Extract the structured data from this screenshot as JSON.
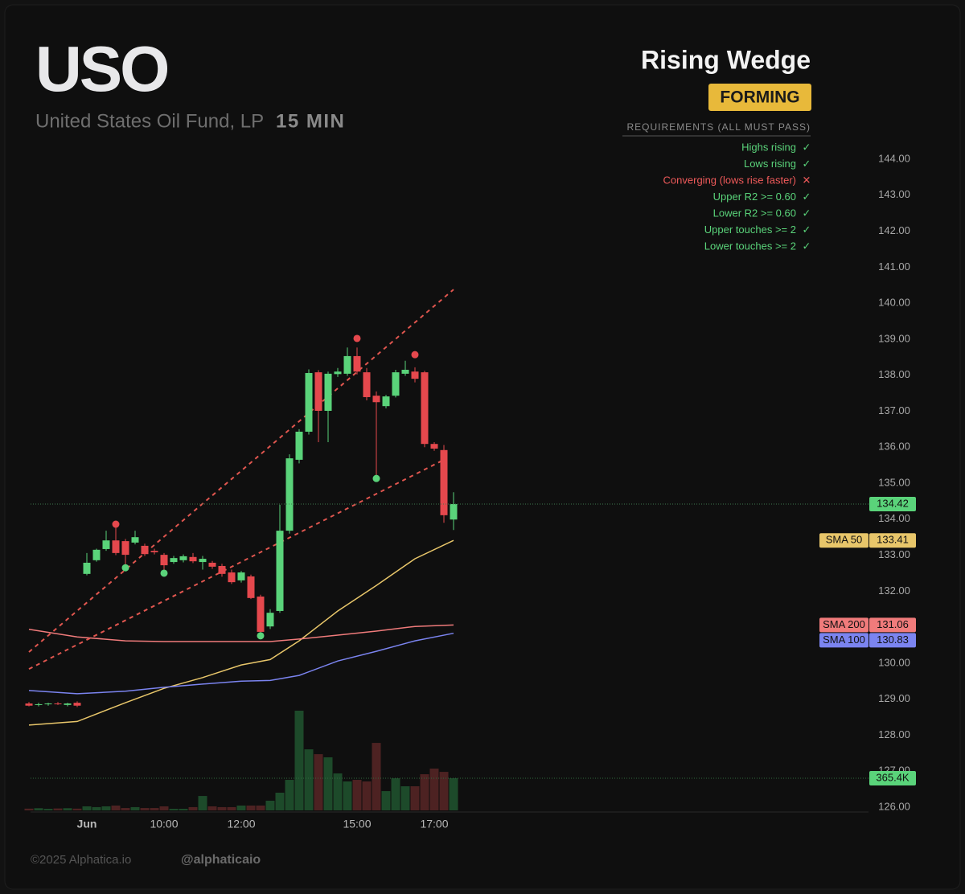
{
  "header": {
    "symbol": "USO",
    "name": "United States Oil Fund, LP",
    "interval": "15 MIN"
  },
  "pattern": {
    "title": "Rising Wedge",
    "status": "FORMING",
    "requirements_title": "REQUIREMENTS (ALL MUST PASS)",
    "requirements": [
      {
        "text": "Highs rising",
        "mark": "✓",
        "color": "#5ad37a"
      },
      {
        "text": "Lows rising",
        "mark": "✓",
        "color": "#5ad37a"
      },
      {
        "text": "Converging (lows rise faster)",
        "mark": "✕",
        "color": "#ef5a5a"
      },
      {
        "text": "Upper R2 >= 0.60",
        "mark": "✓",
        "color": "#5ad37a"
      },
      {
        "text": "Lower R2 >= 0.60",
        "mark": "✓",
        "color": "#5ad37a"
      },
      {
        "text": "Upper touches >= 2",
        "mark": "✓",
        "color": "#5ad37a"
      },
      {
        "text": "Lower touches >= 2",
        "mark": "✓",
        "color": "#5ad37a"
      }
    ]
  },
  "chart_data": {
    "type": "candlestick",
    "categories": [
      null,
      null,
      null,
      null,
      null,
      null,
      "Jun",
      null,
      null,
      null,
      null,
      null,
      null,
      null,
      "10:00",
      null,
      null,
      null,
      null,
      null,
      null,
      null,
      "12:00",
      null,
      null,
      null,
      null,
      null,
      null,
      null,
      null,
      null,
      null,
      null,
      "15:00",
      null,
      null,
      null,
      null,
      null,
      null,
      null,
      "17:00",
      null,
      null
    ],
    "open": [
      128.88,
      128.84,
      128.86,
      128.88,
      128.84,
      128.9,
      132.48,
      132.86,
      133.17,
      133.41,
      133.39,
      133.35,
      133.26,
      133.12,
      133.01,
      132.81,
      132.86,
      132.95,
      132.81,
      132.79,
      132.7,
      132.52,
      132.3,
      132.41,
      131.85,
      131.02,
      131.45,
      133.68,
      135.65,
      136.43,
      138.08,
      137.01,
      138.03,
      138.04,
      138.53,
      138.08,
      137.43,
      137.14,
      137.43,
      138.04,
      138.1,
      138.08,
      136.09,
      135.92,
      133.99
    ],
    "high": [
      128.92,
      128.9,
      128.9,
      128.92,
      128.9,
      128.94,
      133.06,
      133.18,
      133.68,
      133.77,
      133.45,
      133.68,
      133.32,
      133.18,
      133.06,
      132.98,
      133.02,
      133.06,
      132.98,
      132.84,
      132.76,
      132.6,
      132.56,
      132.46,
      131.9,
      131.5,
      134.4,
      135.8,
      136.5,
      138.16,
      138.14,
      138.1,
      138.2,
      138.77,
      138.77,
      138.2,
      137.55,
      137.45,
      138.15,
      138.4,
      138.22,
      138.12,
      136.14,
      136.06,
      134.75
    ],
    "low": [
      128.8,
      128.8,
      128.82,
      128.84,
      128.8,
      128.78,
      132.44,
      132.82,
      133.12,
      133.0,
      132.7,
      133.3,
      132.98,
      133.02,
      132.5,
      132.76,
      132.8,
      132.78,
      132.6,
      132.62,
      132.4,
      132.2,
      132.24,
      131.78,
      130.73,
      130.95,
      131.4,
      133.6,
      135.55,
      136.35,
      136.14,
      136.14,
      137.95,
      137.98,
      138.02,
      137.3,
      135.13,
      137.08,
      137.38,
      137.98,
      137.8,
      136.0,
      135.9,
      133.9,
      133.7
    ],
    "close": [
      128.82,
      128.86,
      128.88,
      128.86,
      128.88,
      128.82,
      132.79,
      133.15,
      133.41,
      133.06,
      133.01,
      133.5,
      133.03,
      133.08,
      132.72,
      132.92,
      132.97,
      132.83,
      132.9,
      132.68,
      132.48,
      132.25,
      132.52,
      131.81,
      130.87,
      131.4,
      133.68,
      135.69,
      136.43,
      138.06,
      137.01,
      138.04,
      138.1,
      138.53,
      138.1,
      137.39,
      137.25,
      137.41,
      138.08,
      138.15,
      137.9,
      136.09,
      135.96,
      134.11,
      134.42
    ],
    "up_color": "#5ad37a",
    "down_color": "#e5484d",
    "ylim": [
      126,
      144
    ],
    "yticks": [
      {
        "value": 126,
        "label": "126.00"
      },
      {
        "value": 127,
        "label": "127.00"
      },
      {
        "value": 128,
        "label": "128.00"
      },
      {
        "value": 129,
        "label": "129.00"
      },
      {
        "value": 130,
        "label": "130.00"
      },
      {
        "value": 131,
        "label": "131.00"
      },
      {
        "value": 132,
        "label": "132.00"
      },
      {
        "value": 133,
        "label": "133.00"
      },
      {
        "value": 134,
        "label": "134.00"
      },
      {
        "value": 135,
        "label": "135.00"
      },
      {
        "value": 136,
        "label": "136.00"
      },
      {
        "value": 137,
        "label": "137.00"
      },
      {
        "value": 138,
        "label": "138.00"
      },
      {
        "value": 139,
        "label": "139.00"
      },
      {
        "value": 140,
        "label": "140.00"
      },
      {
        "value": 141,
        "label": "141.00"
      },
      {
        "value": 142,
        "label": "142.00"
      },
      {
        "value": 143,
        "label": "143.00"
      },
      {
        "value": 144,
        "label": "144.00"
      }
    ],
    "volume": {
      "values": [
        20,
        25,
        18,
        22,
        25,
        20,
        46,
        37,
        46,
        55,
        27,
        37,
        27,
        27,
        46,
        18,
        18,
        37,
        164,
        46,
        37,
        37,
        55,
        55,
        55,
        110,
        201,
        347,
        1133,
        694,
        639,
        603,
        420,
        329,
        347,
        329,
        767,
        219,
        365,
        274,
        274,
        411,
        475,
        438,
        365.4
      ],
      "last_label": "365.4K",
      "up_color": "#1d4a2a",
      "down_color": "#4d2222"
    },
    "series": [
      {
        "name": "SMA 50",
        "color": "#e8c66a",
        "x": [
          0,
          5,
          10,
          14,
          18,
          22,
          25,
          28,
          32,
          36,
          40,
          44
        ],
        "values": [
          128.28,
          128.38,
          128.9,
          129.3,
          129.6,
          129.95,
          130.1,
          130.62,
          131.45,
          132.16,
          132.9,
          133.41
        ]
      },
      {
        "name": "SMA 200",
        "color": "#f07b7b",
        "x": [
          0,
          5,
          10,
          14,
          18,
          22,
          25,
          28,
          32,
          36,
          40,
          44
        ],
        "values": [
          130.94,
          130.73,
          130.62,
          130.6,
          130.6,
          130.6,
          130.6,
          130.67,
          130.78,
          130.89,
          131.02,
          131.06
        ]
      },
      {
        "name": "SMA 100",
        "color": "#7b84f0",
        "x": [
          0,
          5,
          10,
          14,
          18,
          22,
          25,
          28,
          32,
          36,
          40,
          44
        ],
        "values": [
          129.24,
          129.15,
          129.22,
          129.33,
          129.42,
          129.5,
          129.52,
          129.66,
          130.06,
          130.33,
          130.62,
          130.83
        ]
      }
    ],
    "trendlines": [
      {
        "color": "#e0564f",
        "x": [
          0,
          44
        ],
        "values": [
          130.31,
          140.38
        ]
      },
      {
        "color": "#e0564f",
        "x": [
          0,
          43
        ],
        "values": [
          129.84,
          135.65
        ]
      }
    ],
    "pivot_highs": {
      "color": "#e5484d",
      "x": [
        9,
        34,
        40
      ],
      "values": [
        133.86,
        139.02,
        138.57
      ]
    },
    "pivot_lows": {
      "color": "#5ad37a",
      "x": [
        10,
        14,
        24,
        36
      ],
      "values": [
        132.65,
        132.5,
        130.76,
        135.13
      ]
    }
  },
  "footer": {
    "copyright": "©2025 Alphatica.io",
    "handle": "@alphaticaio"
  }
}
